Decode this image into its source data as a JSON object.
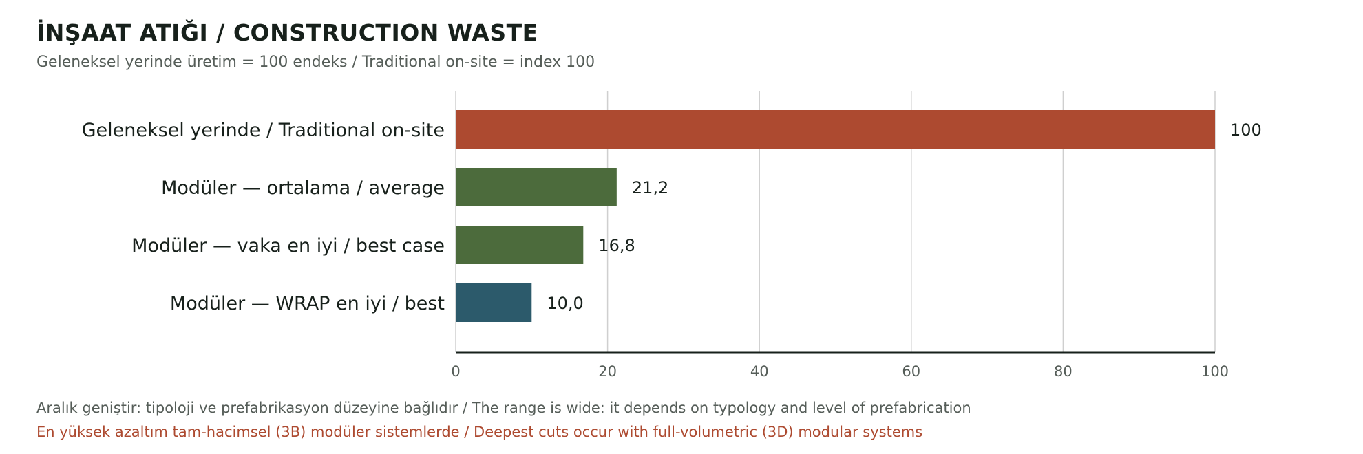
{
  "header": {
    "title": "İNŞAAT ATIĞI / CONSTRUCTION WASTE",
    "subtitle": "Geleneksel yerinde üretim = 100 endeks / Traditional on-site = index 100"
  },
  "notes": {
    "range_note": "Aralık geniştir: tipoloji ve prefabrikasyon düzeyine bağlıdır / The range is wide: it depends on typology and level of prefabrication",
    "highlight_note": "En yüksek azaltım tam-hacimsel (3B) modüler sistemlerde / Deepest cuts occur with full-volumetric (3D) modular systems",
    "highlight_color": "#ad4a30"
  },
  "chart_data": {
    "type": "bar",
    "orientation": "horizontal",
    "title": "İNŞAAT ATIĞI / CONSTRUCTION WASTE",
    "subtitle": "Geleneksel yerinde üretim = 100 endeks / Traditional on-site = index 100",
    "categories": [
      "Geleneksel yerinde / Traditional on-site",
      "Modüler — ortalama / average",
      "Modüler — vaka en iyi / best case",
      "Modüler — WRAP en iyi / best"
    ],
    "values": [
      100,
      21.2,
      16.8,
      10.0
    ],
    "value_labels": [
      "100",
      "21,2",
      "16,8",
      "10,0"
    ],
    "colors": [
      "#ad4a30",
      "#4c6b3c",
      "#4c6b3c",
      "#2c5a6b"
    ],
    "xlim": [
      0,
      100
    ],
    "xticks": [
      0,
      20,
      40,
      60,
      80,
      100
    ],
    "xtick_labels": [
      "0",
      "20",
      "40",
      "60",
      "80",
      "100"
    ],
    "grid": true,
    "legend": "none"
  }
}
